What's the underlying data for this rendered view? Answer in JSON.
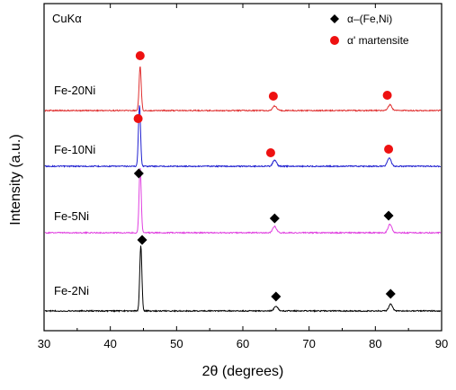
{
  "chart_data": {
    "type": "line",
    "xlabel": "2θ (degrees)",
    "ylabel": "Intensity (a.u.)",
    "xlim": [
      30,
      90
    ],
    "xticks": [
      "30",
      "40",
      "50",
      "60",
      "70",
      "80",
      "90"
    ],
    "grid": false,
    "annotation": "CuKα",
    "legend": {
      "placement": "top-right",
      "entries": [
        {
          "label": "α–(Fe,Ni)",
          "marker": "diamond",
          "color": "#000000"
        },
        {
          "label": "α' martensite",
          "marker": "circle",
          "color": "#ee1111"
        }
      ]
    },
    "series": [
      {
        "name": "Fe-20Ni",
        "color": "#e03030",
        "peaks": [
          {
            "x": 44.5,
            "intensity": 0.95
          },
          {
            "x": 64.8,
            "intensity": 0.1
          },
          {
            "x": 82.2,
            "intensity": 0.12
          }
        ],
        "phase_markers": [
          {
            "x": 44.5,
            "type": "circle"
          },
          {
            "x": 64.6,
            "type": "circle"
          },
          {
            "x": 81.8,
            "type": "circle"
          }
        ]
      },
      {
        "name": "Fe-10Ni",
        "color": "#2020d0",
        "peaks": [
          {
            "x": 44.4,
            "intensity": 1.0
          },
          {
            "x": 64.8,
            "intensity": 0.1
          },
          {
            "x": 82.1,
            "intensity": 0.14
          }
        ],
        "phase_markers": [
          {
            "x": 44.2,
            "type": "circle"
          },
          {
            "x": 64.2,
            "type": "circle"
          },
          {
            "x": 82.0,
            "type": "circle"
          }
        ]
      },
      {
        "name": "Fe-5Ni",
        "color": "#e040e0",
        "peaks": [
          {
            "x": 44.5,
            "intensity": 1.0
          },
          {
            "x": 64.8,
            "intensity": 0.1
          },
          {
            "x": 82.2,
            "intensity": 0.13
          }
        ],
        "phase_markers": [
          {
            "x": 44.3,
            "type": "diamond"
          },
          {
            "x": 64.8,
            "type": "diamond"
          },
          {
            "x": 82.0,
            "type": "diamond"
          }
        ]
      },
      {
        "name": "Fe-2Ni",
        "color": "#000000",
        "peaks": [
          {
            "x": 44.6,
            "intensity": 1.0
          },
          {
            "x": 65.0,
            "intensity": 0.07
          },
          {
            "x": 82.3,
            "intensity": 0.1
          }
        ],
        "phase_markers": [
          {
            "x": 44.8,
            "type": "diamond"
          },
          {
            "x": 65.0,
            "type": "diamond"
          },
          {
            "x": 82.3,
            "type": "diamond"
          }
        ]
      }
    ]
  }
}
